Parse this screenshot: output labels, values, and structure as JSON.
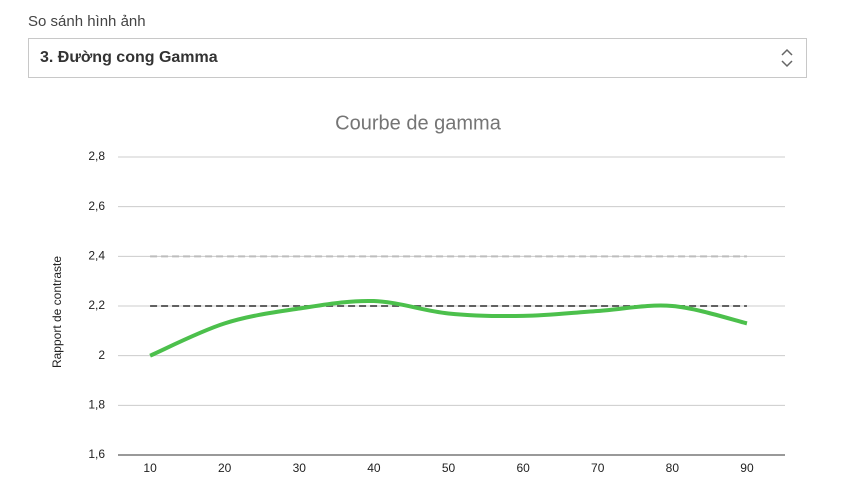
{
  "header": {
    "label": "So sánh hình ảnh"
  },
  "select": {
    "value": "3. Đường cong Gamma"
  },
  "chart_data": {
    "type": "line",
    "title": "Courbe de gamma",
    "y_label": "Rapport de contraste",
    "x": [
      10,
      20,
      30,
      40,
      50,
      60,
      70,
      80,
      90
    ],
    "series": [
      {
        "color": "#4cc04c",
        "values": [
          2.0,
          2.13,
          2.19,
          2.22,
          2.17,
          2.16,
          2.18,
          2.2,
          2.13
        ]
      }
    ],
    "reference_lines": [
      {
        "value": 2.4,
        "color": "#bdbdbd"
      },
      {
        "value": 2.2,
        "color": "#616161"
      }
    ],
    "xlim": [
      5.7,
      95.1
    ],
    "xticks": [
      10,
      20,
      30,
      40,
      50,
      60,
      70,
      80,
      90
    ],
    "ylim": [
      1.6,
      2.8
    ],
    "yticks": [
      {
        "value": 1.6,
        "label": "1,6"
      },
      {
        "value": 1.8,
        "label": "1,8"
      },
      2,
      {
        "value": 2.2,
        "label": "2,2"
      },
      {
        "value": 2.4,
        "label": "2,4"
      },
      {
        "value": 2.6,
        "label": "2,6"
      },
      {
        "value": 2.8,
        "label": "2,8"
      }
    ],
    "grid": true,
    "smooth": true
  }
}
